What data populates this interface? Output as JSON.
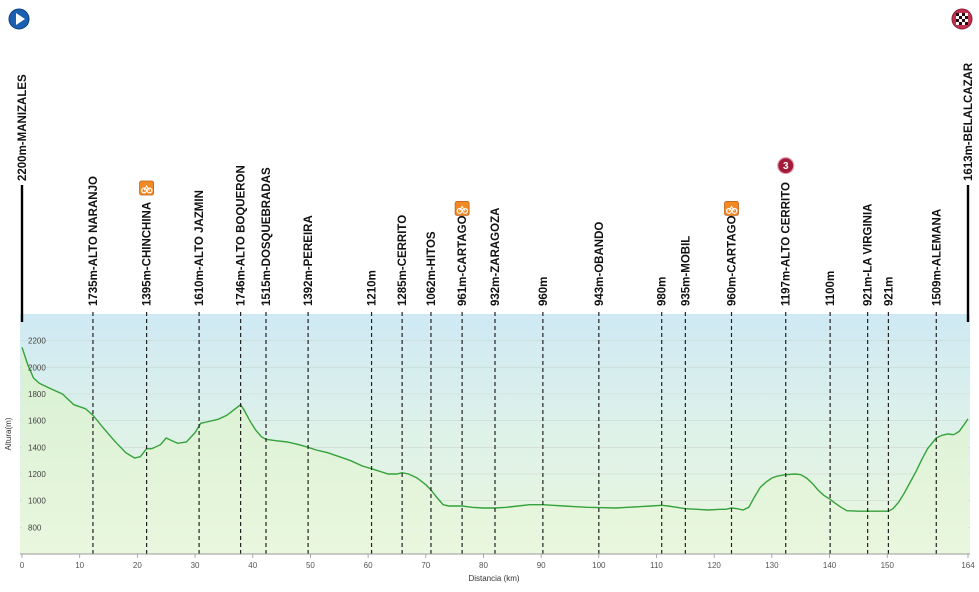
{
  "chart_data": {
    "type": "area",
    "xlabel": "Distancia (km)",
    "ylabel": "Altura(m)",
    "xlim": [
      0,
      164
    ],
    "ylim": [
      600,
      2400
    ],
    "xticks": [
      "0",
      "10",
      "20",
      "30",
      "40",
      "50",
      "60",
      "70",
      "80",
      "90",
      "100",
      "110",
      "120",
      "130",
      "140",
      "150",
      "164"
    ],
    "yticks": [
      "2200",
      "2000",
      "1800",
      "1600",
      "1400",
      "1200",
      "1000",
      "800"
    ],
    "start": {
      "km": 0,
      "label": "2200m-MANIZALES"
    },
    "finish": {
      "km": 164,
      "label": "1613m-BELALCAZAR"
    },
    "waypoints": [
      {
        "km": 12.3,
        "label": "1735m-ALTO NARANJO"
      },
      {
        "km": 21.6,
        "label": "1395m-CHINCHINA",
        "icon": "feed"
      },
      {
        "km": 30.7,
        "label": "1610m-ALTO JAZMIN"
      },
      {
        "km": 37.9,
        "label": "1746m-ALTO BOQUERON"
      },
      {
        "km": 42.3,
        "label": "1515m-DOSQUEBRADAS"
      },
      {
        "km": 49.6,
        "label": "1392m-PEREIRA"
      },
      {
        "km": 60.6,
        "label": "1210m"
      },
      {
        "km": 65.9,
        "label": "1285m-CERRITO"
      },
      {
        "km": 70.9,
        "label": "1062m-HITOS"
      },
      {
        "km": 76.3,
        "label": "961m-CARTAGO",
        "icon": "feed"
      },
      {
        "km": 82.0,
        "label": "932m-ZARAGOZA"
      },
      {
        "km": 90.3,
        "label": "960m"
      },
      {
        "km": 100.0,
        "label": "943m-OBANDO"
      },
      {
        "km": 110.9,
        "label": "980m"
      },
      {
        "km": 115.0,
        "label": "935m-MOBIL"
      },
      {
        "km": 123.0,
        "label": "960m-CARTAGO",
        "icon": "feed"
      },
      {
        "km": 132.4,
        "label": "1197m-ALTO CERRITO",
        "icon": "climb-cat",
        "icon_text": "3"
      },
      {
        "km": 140.1,
        "label": "1100m"
      },
      {
        "km": 146.6,
        "label": "921m-LA VIRGINIA"
      },
      {
        "km": 150.2,
        "label": "921m"
      },
      {
        "km": 158.5,
        "label": "1509m-ALEMANA"
      }
    ],
    "profile": [
      [
        0,
        2150
      ],
      [
        1,
        2020
      ],
      [
        2,
        1920
      ],
      [
        3,
        1880
      ],
      [
        5,
        1840
      ],
      [
        7,
        1800
      ],
      [
        9,
        1720
      ],
      [
        11,
        1690
      ],
      [
        12.3,
        1640
      ],
      [
        14,
        1550
      ],
      [
        16,
        1450
      ],
      [
        18,
        1360
      ],
      [
        19.5,
        1320
      ],
      [
        20.5,
        1330
      ],
      [
        21.6,
        1390
      ],
      [
        22.5,
        1390
      ],
      [
        24,
        1420
      ],
      [
        25,
        1470
      ],
      [
        26,
        1450
      ],
      [
        27,
        1430
      ],
      [
        28.5,
        1440
      ],
      [
        30,
        1510
      ],
      [
        31,
        1580
      ],
      [
        32,
        1590
      ],
      [
        34,
        1610
      ],
      [
        35.5,
        1640
      ],
      [
        37,
        1690
      ],
      [
        37.9,
        1720
      ],
      [
        38.5,
        1680
      ],
      [
        39.5,
        1600
      ],
      [
        40.5,
        1530
      ],
      [
        41.5,
        1480
      ],
      [
        42.3,
        1460
      ],
      [
        44,
        1450
      ],
      [
        46,
        1440
      ],
      [
        48,
        1420
      ],
      [
        49.6,
        1400
      ],
      [
        51,
        1380
      ],
      [
        53,
        1360
      ],
      [
        55,
        1330
      ],
      [
        57,
        1300
      ],
      [
        59,
        1260
      ],
      [
        60.6,
        1240
      ],
      [
        62,
        1220
      ],
      [
        63.5,
        1200
      ],
      [
        65,
        1200
      ],
      [
        65.9,
        1210
      ],
      [
        67,
        1200
      ],
      [
        68.5,
        1170
      ],
      [
        70,
        1120
      ],
      [
        70.9,
        1080
      ],
      [
        72,
        1020
      ],
      [
        73,
        970
      ],
      [
        74,
        960
      ],
      [
        75,
        960
      ],
      [
        76.3,
        960
      ],
      [
        78,
        950
      ],
      [
        80,
        945
      ],
      [
        82,
        945
      ],
      [
        84,
        950
      ],
      [
        86,
        960
      ],
      [
        88,
        970
      ],
      [
        90.3,
        970
      ],
      [
        92,
        965
      ],
      [
        94,
        960
      ],
      [
        96,
        955
      ],
      [
        98,
        950
      ],
      [
        100,
        948
      ],
      [
        103,
        945
      ],
      [
        105,
        950
      ],
      [
        107,
        955
      ],
      [
        109,
        960
      ],
      [
        110.9,
        965
      ],
      [
        112,
        960
      ],
      [
        113.5,
        950
      ],
      [
        115,
        940
      ],
      [
        117,
        935
      ],
      [
        119,
        930
      ],
      [
        121,
        935
      ],
      [
        122,
        935
      ],
      [
        123,
        945
      ],
      [
        124,
        940
      ],
      [
        125,
        930
      ],
      [
        126,
        950
      ],
      [
        127,
        1030
      ],
      [
        128,
        1100
      ],
      [
        129,
        1140
      ],
      [
        130,
        1170
      ],
      [
        131,
        1185
      ],
      [
        132.4,
        1195
      ],
      [
        134,
        1200
      ],
      [
        135,
        1195
      ],
      [
        136,
        1170
      ],
      [
        137,
        1130
      ],
      [
        138,
        1080
      ],
      [
        139,
        1040
      ],
      [
        140.1,
        1010
      ],
      [
        141,
        980
      ],
      [
        142,
        950
      ],
      [
        143,
        925
      ],
      [
        145,
        921
      ],
      [
        146.6,
        921
      ],
      [
        148,
        921
      ],
      [
        149,
        921
      ],
      [
        150.2,
        921
      ],
      [
        151,
        940
      ],
      [
        152,
        990
      ],
      [
        153,
        1060
      ],
      [
        154,
        1140
      ],
      [
        155,
        1220
      ],
      [
        156,
        1310
      ],
      [
        157,
        1390
      ],
      [
        158.5,
        1470
      ],
      [
        159.5,
        1490
      ],
      [
        160.5,
        1500
      ],
      [
        161.5,
        1495
      ],
      [
        162.5,
        1520
      ],
      [
        163.3,
        1570
      ],
      [
        164,
        1613
      ]
    ]
  }
}
